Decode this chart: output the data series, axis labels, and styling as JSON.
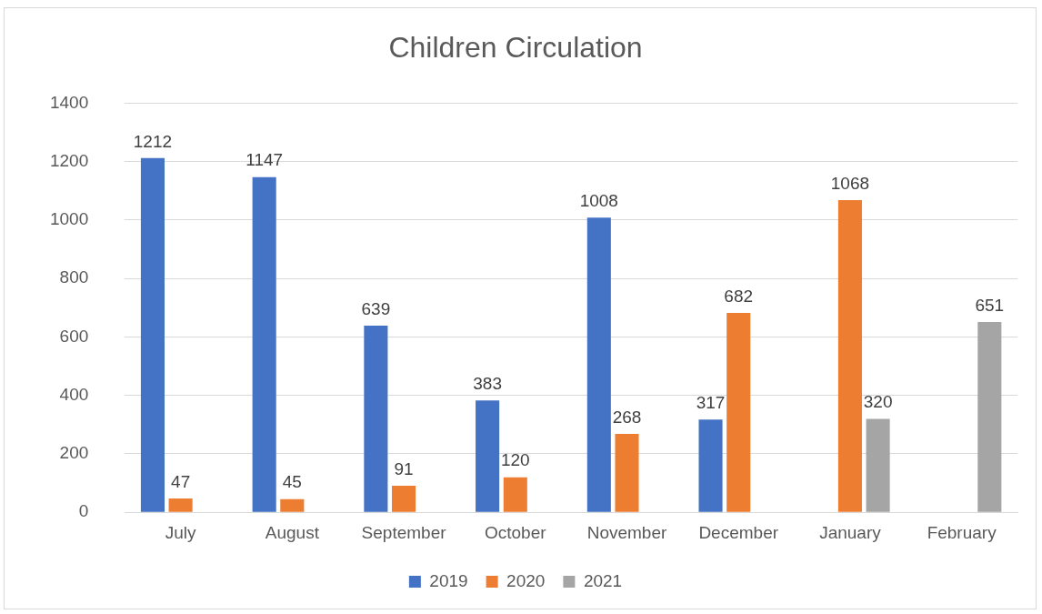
{
  "chart_data": {
    "type": "bar",
    "title": "Children Circulation",
    "categories": [
      "July",
      "August",
      "September",
      "October",
      "November",
      "December",
      "January",
      "February"
    ],
    "series": [
      {
        "name": "2019",
        "color": "#4472c4",
        "values": [
          1212,
          1147,
          639,
          383,
          1008,
          317,
          null,
          null
        ]
      },
      {
        "name": "2020",
        "color": "#ed7d31",
        "values": [
          47,
          45,
          91,
          120,
          268,
          682,
          1068,
          null
        ]
      },
      {
        "name": "2021",
        "color": "#a5a5a5",
        "values": [
          null,
          null,
          null,
          null,
          null,
          null,
          320,
          651
        ]
      }
    ],
    "ylim": [
      0,
      1400
    ],
    "yticks": [
      0,
      200,
      400,
      600,
      800,
      1000,
      1200,
      1400
    ],
    "grid": "y",
    "legend": "bottom",
    "data_labels": true
  }
}
